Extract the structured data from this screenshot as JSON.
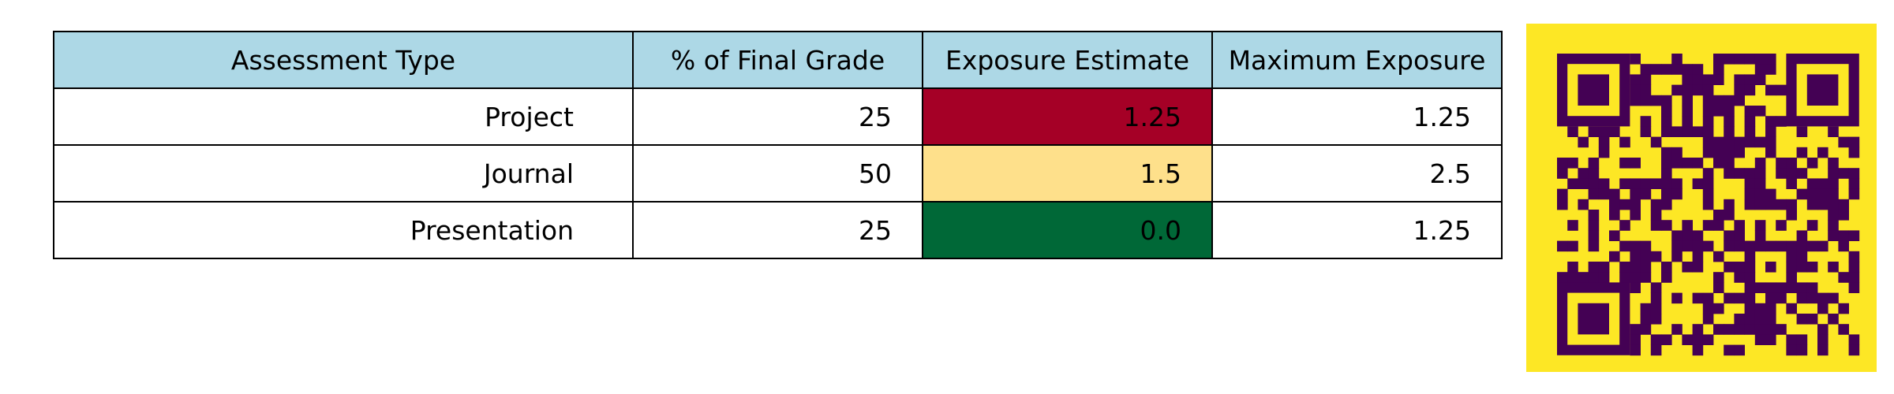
{
  "chart_data": {
    "type": "table",
    "columns": [
      "Assessment Type",
      "% of Final Grade",
      "Exposure Estimate",
      "Maximum Exposure"
    ],
    "rows": [
      [
        "Project",
        "25",
        "1.25",
        "1.25"
      ],
      [
        "Journal",
        "50",
        "1.5",
        "2.5"
      ],
      [
        "Presentation",
        "25",
        "0.0",
        "1.25"
      ]
    ],
    "cell_colors": {
      "header": "#add8e6",
      "exposure_estimate": [
        "#a50026",
        "#fee08b",
        "#006837"
      ],
      "default": "#ffffff"
    }
  },
  "qr_code": {
    "icon": "qr-code-icon",
    "background_color": "#fde725",
    "module_color": "#440154"
  }
}
